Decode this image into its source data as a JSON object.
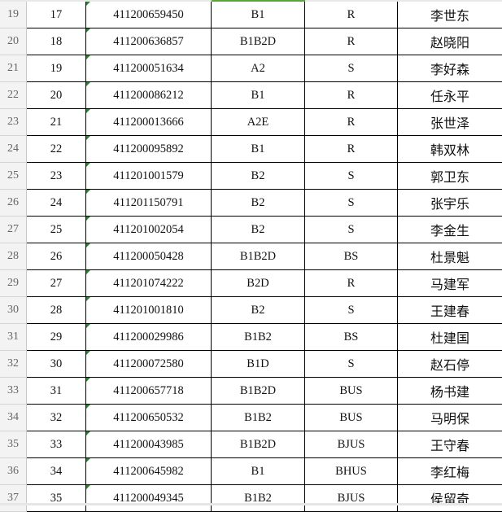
{
  "colors": {
    "selected_column_accent": "#5aa537",
    "text_number_indicator": "#1e8a2a"
  },
  "rows": [
    {
      "row": "19",
      "no": "17",
      "id": "411200659450",
      "cls": "B1",
      "code": "R",
      "name": "李世东"
    },
    {
      "row": "20",
      "no": "18",
      "id": "411200636857",
      "cls": "B1B2D",
      "code": "R",
      "name": "赵晓阳"
    },
    {
      "row": "21",
      "no": "19",
      "id": "411200051634",
      "cls": "A2",
      "code": "S",
      "name": "李好森"
    },
    {
      "row": "22",
      "no": "20",
      "id": "411200086212",
      "cls": "B1",
      "code": "R",
      "name": "任永平"
    },
    {
      "row": "23",
      "no": "21",
      "id": "411200013666",
      "cls": "A2E",
      "code": "R",
      "name": "张世泽"
    },
    {
      "row": "24",
      "no": "22",
      "id": "411200095892",
      "cls": "B1",
      "code": "R",
      "name": "韩双林"
    },
    {
      "row": "25",
      "no": "23",
      "id": "411201001579",
      "cls": "B2",
      "code": "S",
      "name": "郭卫东"
    },
    {
      "row": "26",
      "no": "24",
      "id": "411201150791",
      "cls": "B2",
      "code": "S",
      "name": "张宇乐"
    },
    {
      "row": "27",
      "no": "25",
      "id": "411201002054",
      "cls": "B2",
      "code": "S",
      "name": "李金生"
    },
    {
      "row": "28",
      "no": "26",
      "id": "411200050428",
      "cls": "B1B2D",
      "code": "BS",
      "name": "杜景魁"
    },
    {
      "row": "29",
      "no": "27",
      "id": "411201074222",
      "cls": "B2D",
      "code": "R",
      "name": "马建军"
    },
    {
      "row": "30",
      "no": "28",
      "id": "411201001810",
      "cls": "B2",
      "code": "S",
      "name": "王建春"
    },
    {
      "row": "31",
      "no": "29",
      "id": "411200029986",
      "cls": "B1B2",
      "code": "BS",
      "name": "杜建国"
    },
    {
      "row": "32",
      "no": "30",
      "id": "411200072580",
      "cls": "B1D",
      "code": "S",
      "name": "赵石停"
    },
    {
      "row": "33",
      "no": "31",
      "id": "411200657718",
      "cls": "B1B2D",
      "code": "BUS",
      "name": "杨书建"
    },
    {
      "row": "34",
      "no": "32",
      "id": "411200650532",
      "cls": "B1B2",
      "code": "BUS",
      "name": "马明保"
    },
    {
      "row": "35",
      "no": "33",
      "id": "411200043985",
      "cls": "B1B2D",
      "code": "BJUS",
      "name": "王守春"
    },
    {
      "row": "36",
      "no": "34",
      "id": "411200645982",
      "cls": "B1",
      "code": "BHUS",
      "name": "李红梅"
    },
    {
      "row": "37",
      "no": "35",
      "id": "411200049345",
      "cls": "B1B2",
      "code": "BJUS",
      "name": "侯留奇"
    }
  ]
}
